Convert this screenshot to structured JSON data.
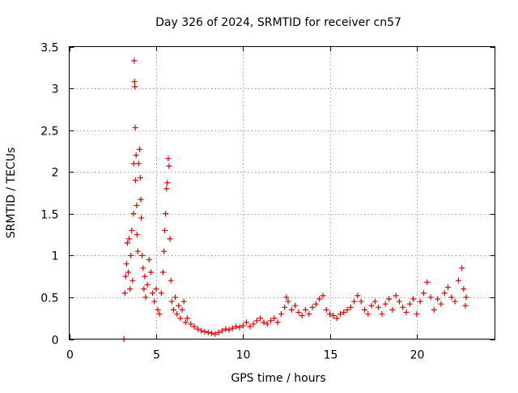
{
  "chart_data": {
    "type": "scatter",
    "title": "Day 326 of 2024, SRMTID for receiver cn57",
    "xlabel": "GPS time / hours",
    "ylabel": "SRMTID / TECUs",
    "xlim": [
      0,
      24.5
    ],
    "ylim": [
      0,
      3.5
    ],
    "x_ticks": [
      0,
      5,
      10,
      15,
      20
    ],
    "x_tick_labels": [
      "0",
      "5",
      "10",
      "15",
      "20"
    ],
    "y_ticks": [
      0,
      0.5,
      1,
      1.5,
      2,
      2.5,
      3,
      3.5
    ],
    "y_tick_labels": [
      "0",
      "0.5",
      "1",
      "1.5",
      "2",
      "2.5",
      "3",
      "3.5"
    ],
    "grid": true,
    "marker": "+",
    "series": [
      {
        "name": "SRMTID",
        "color": "#e00000",
        "points": [
          [
            3.15,
            0.0
          ],
          [
            3.2,
            0.55
          ],
          [
            3.25,
            0.75
          ],
          [
            3.3,
            0.9
          ],
          [
            3.35,
            1.15
          ],
          [
            3.4,
            0.8
          ],
          [
            3.45,
            1.2
          ],
          [
            3.5,
            0.6
          ],
          [
            3.55,
            1.0
          ],
          [
            3.6,
            1.3
          ],
          [
            3.65,
            0.7
          ],
          [
            3.7,
            1.5
          ],
          [
            3.72,
            2.1
          ],
          [
            3.74,
            3.33
          ],
          [
            3.76,
            3.08
          ],
          [
            3.78,
            3.02
          ],
          [
            3.8,
            2.53
          ],
          [
            3.82,
            1.9
          ],
          [
            3.85,
            2.2
          ],
          [
            3.88,
            1.6
          ],
          [
            3.9,
            1.25
          ],
          [
            3.95,
            1.05
          ],
          [
            4.0,
            2.1
          ],
          [
            4.05,
            2.27
          ],
          [
            4.1,
            1.93
          ],
          [
            4.12,
            1.67
          ],
          [
            4.15,
            1.45
          ],
          [
            4.2,
            1.0
          ],
          [
            4.25,
            0.85
          ],
          [
            4.3,
            0.6
          ],
          [
            4.35,
            0.75
          ],
          [
            4.4,
            0.5
          ],
          [
            4.5,
            0.65
          ],
          [
            4.6,
            0.95
          ],
          [
            4.7,
            0.8
          ],
          [
            4.8,
            0.55
          ],
          [
            4.9,
            0.45
          ],
          [
            5.0,
            0.6
          ],
          [
            5.1,
            0.35
          ],
          [
            5.2,
            0.3
          ],
          [
            5.3,
            0.55
          ],
          [
            5.4,
            0.8
          ],
          [
            5.45,
            1.05
          ],
          [
            5.5,
            1.3
          ],
          [
            5.55,
            1.5
          ],
          [
            5.6,
            1.8
          ],
          [
            5.65,
            1.87
          ],
          [
            5.7,
            2.16
          ],
          [
            5.75,
            2.07
          ],
          [
            5.8,
            1.2
          ],
          [
            5.85,
            0.7
          ],
          [
            5.9,
            0.45
          ],
          [
            6.0,
            0.35
          ],
          [
            6.1,
            0.5
          ],
          [
            6.2,
            0.3
          ],
          [
            6.3,
            0.4
          ],
          [
            6.4,
            0.25
          ],
          [
            6.5,
            0.35
          ],
          [
            6.6,
            0.45
          ],
          [
            6.7,
            0.2
          ],
          [
            6.8,
            0.25
          ],
          [
            7.0,
            0.18
          ],
          [
            7.2,
            0.15
          ],
          [
            7.4,
            0.12
          ],
          [
            7.6,
            0.1
          ],
          [
            7.8,
            0.09
          ],
          [
            8.0,
            0.08
          ],
          [
            8.2,
            0.07
          ],
          [
            8.4,
            0.06
          ],
          [
            8.6,
            0.08
          ],
          [
            8.8,
            0.1
          ],
          [
            9.0,
            0.12
          ],
          [
            9.2,
            0.11
          ],
          [
            9.4,
            0.13
          ],
          [
            9.6,
            0.15
          ],
          [
            9.8,
            0.14
          ],
          [
            10.0,
            0.16
          ],
          [
            10.2,
            0.2
          ],
          [
            10.4,
            0.15
          ],
          [
            10.6,
            0.18
          ],
          [
            10.8,
            0.22
          ],
          [
            11.0,
            0.25
          ],
          [
            11.2,
            0.2
          ],
          [
            11.4,
            0.18
          ],
          [
            11.6,
            0.22
          ],
          [
            11.8,
            0.25
          ],
          [
            12.0,
            0.2
          ],
          [
            12.2,
            0.3
          ],
          [
            12.4,
            0.38
          ],
          [
            12.5,
            0.5
          ],
          [
            12.6,
            0.45
          ],
          [
            12.8,
            0.35
          ],
          [
            13.0,
            0.4
          ],
          [
            13.2,
            0.32
          ],
          [
            13.4,
            0.28
          ],
          [
            13.6,
            0.35
          ],
          [
            13.8,
            0.3
          ],
          [
            14.0,
            0.38
          ],
          [
            14.2,
            0.42
          ],
          [
            14.4,
            0.48
          ],
          [
            14.6,
            0.52
          ],
          [
            14.8,
            0.35
          ],
          [
            15.0,
            0.3
          ],
          [
            15.2,
            0.28
          ],
          [
            15.4,
            0.25
          ],
          [
            15.6,
            0.3
          ],
          [
            15.8,
            0.32
          ],
          [
            16.0,
            0.35
          ],
          [
            16.2,
            0.38
          ],
          [
            16.4,
            0.45
          ],
          [
            16.6,
            0.52
          ],
          [
            16.8,
            0.45
          ],
          [
            17.0,
            0.35
          ],
          [
            17.2,
            0.3
          ],
          [
            17.4,
            0.4
          ],
          [
            17.6,
            0.45
          ],
          [
            17.8,
            0.38
          ],
          [
            18.0,
            0.3
          ],
          [
            18.2,
            0.42
          ],
          [
            18.4,
            0.48
          ],
          [
            18.6,
            0.35
          ],
          [
            18.8,
            0.52
          ],
          [
            19.0,
            0.45
          ],
          [
            19.2,
            0.38
          ],
          [
            19.4,
            0.32
          ],
          [
            19.6,
            0.42
          ],
          [
            19.8,
            0.48
          ],
          [
            20.0,
            0.3
          ],
          [
            20.2,
            0.45
          ],
          [
            20.4,
            0.55
          ],
          [
            20.6,
            0.68
          ],
          [
            20.8,
            0.5
          ],
          [
            21.0,
            0.35
          ],
          [
            21.2,
            0.48
          ],
          [
            21.4,
            0.42
          ],
          [
            21.6,
            0.55
          ],
          [
            21.8,
            0.62
          ],
          [
            22.0,
            0.5
          ],
          [
            22.2,
            0.45
          ],
          [
            22.4,
            0.7
          ],
          [
            22.6,
            0.85
          ],
          [
            22.7,
            0.6
          ],
          [
            22.8,
            0.4
          ],
          [
            22.85,
            0.5
          ]
        ]
      }
    ]
  }
}
